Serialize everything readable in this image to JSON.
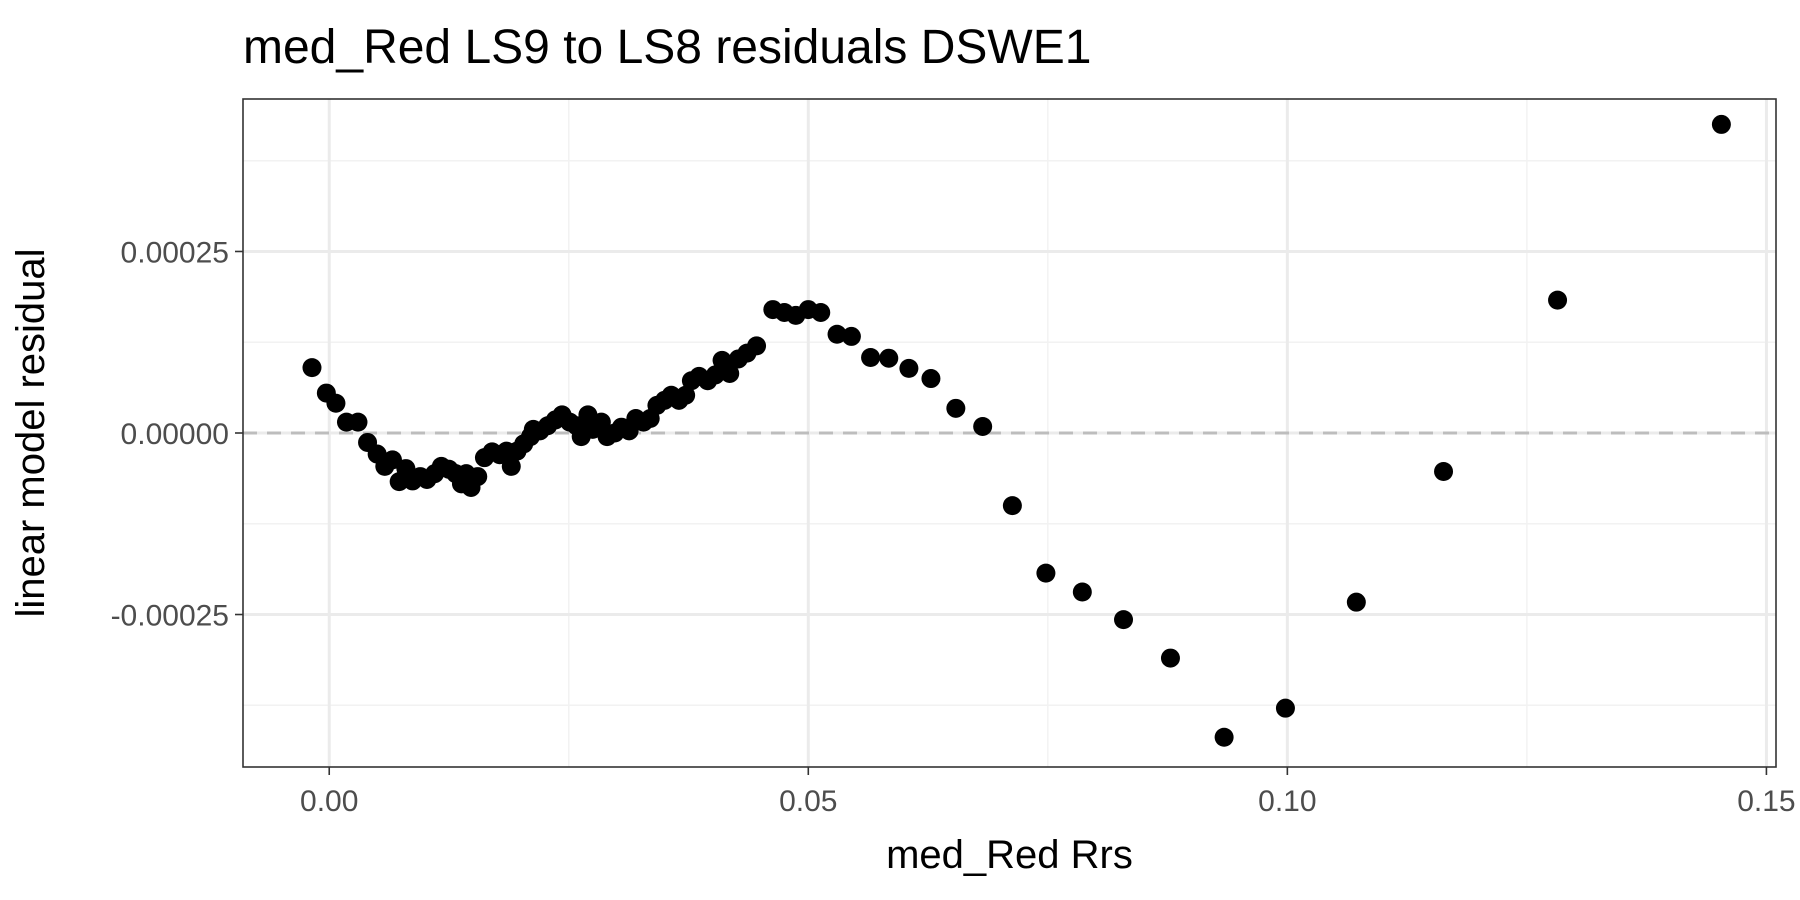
{
  "chart_data": {
    "type": "scatter",
    "title": "med_Red LS9 to LS8 residuals DSWE1",
    "xlabel": "med_Red  Rrs",
    "ylabel": "linear model residual",
    "xlim": [
      -0.009,
      0.151
    ],
    "ylim": [
      -0.00046,
      0.00046
    ],
    "x_major_ticks": [
      0.0,
      0.05,
      0.1,
      0.15
    ],
    "x_tick_labels": [
      "0.00",
      "0.05",
      "0.10",
      "0.15"
    ],
    "x_minor_ticks": [
      0.025,
      0.075,
      0.125
    ],
    "y_major_ticks": [
      -0.00025,
      0.0,
      0.00025
    ],
    "y_tick_labels": [
      "-0.00025",
      "0.00000",
      "0.00025"
    ],
    "y_minor_ticks": [
      -0.000375,
      -0.000125,
      0.000125,
      0.000375
    ],
    "reference_line": {
      "y": 0,
      "style": "dashed",
      "color": "#bdbdbd"
    },
    "grid": true,
    "point_color": "#000000",
    "points": [
      {
        "x": -0.0018,
        "y": 9e-05
      },
      {
        "x": -0.0003,
        "y": 5.5e-05
      },
      {
        "x": 0.0007,
        "y": 4.1e-05
      },
      {
        "x": 0.0018,
        "y": 1.5e-05
      },
      {
        "x": 0.003,
        "y": 1.5e-05
      },
      {
        "x": 0.004,
        "y": -1.3e-05
      },
      {
        "x": 0.005,
        "y": -2.9e-05
      },
      {
        "x": 0.0058,
        "y": -4.6e-05
      },
      {
        "x": 0.0066,
        "y": -3.7e-05
      },
      {
        "x": 0.0073,
        "y": -6.7e-05
      },
      {
        "x": 0.008,
        "y": -4.9e-05
      },
      {
        "x": 0.0087,
        "y": -6.6e-05
      },
      {
        "x": 0.0095,
        "y": -6e-05
      },
      {
        "x": 0.0102,
        "y": -6.4e-05
      },
      {
        "x": 0.011,
        "y": -5.6e-05
      },
      {
        "x": 0.0117,
        "y": -4.6e-05
      },
      {
        "x": 0.0125,
        "y": -5e-05
      },
      {
        "x": 0.0132,
        "y": -5.6e-05
      },
      {
        "x": 0.0138,
        "y": -7e-05
      },
      {
        "x": 0.0143,
        "y": -5.6e-05
      },
      {
        "x": 0.0148,
        "y": -7.5e-05
      },
      {
        "x": 0.0155,
        "y": -6e-05
      },
      {
        "x": 0.0162,
        "y": -3.4e-05
      },
      {
        "x": 0.017,
        "y": -2.6e-05
      },
      {
        "x": 0.0178,
        "y": -3e-05
      },
      {
        "x": 0.0185,
        "y": -2.5e-05
      },
      {
        "x": 0.019,
        "y": -4.6e-05
      },
      {
        "x": 0.0196,
        "y": -2.5e-05
      },
      {
        "x": 0.0203,
        "y": -1.5e-05
      },
      {
        "x": 0.021,
        "y": -5e-06
      },
      {
        "x": 0.0213,
        "y": 5e-06
      },
      {
        "x": 0.022,
        "y": 3e-06
      },
      {
        "x": 0.0228,
        "y": 1e-05
      },
      {
        "x": 0.0236,
        "y": 1.8e-05
      },
      {
        "x": 0.0243,
        "y": 2.5e-05
      },
      {
        "x": 0.0251,
        "y": 1.5e-05
      },
      {
        "x": 0.0258,
        "y": 1e-05
      },
      {
        "x": 0.0263,
        "y": -5e-06
      },
      {
        "x": 0.027,
        "y": 2.5e-05
      },
      {
        "x": 0.0275,
        "y": 5e-06
      },
      {
        "x": 0.0284,
        "y": 1.5e-05
      },
      {
        "x": 0.029,
        "y": -5e-06
      },
      {
        "x": 0.0298,
        "y": 0.0
      },
      {
        "x": 0.0305,
        "y": 8e-06
      },
      {
        "x": 0.0313,
        "y": 3e-06
      },
      {
        "x": 0.032,
        "y": 2e-05
      },
      {
        "x": 0.0328,
        "y": 1.5e-05
      },
      {
        "x": 0.0335,
        "y": 2e-05
      },
      {
        "x": 0.0342,
        "y": 3.8e-05
      },
      {
        "x": 0.035,
        "y": 4.5e-05
      },
      {
        "x": 0.0357,
        "y": 5.2e-05
      },
      {
        "x": 0.0365,
        "y": 4.5e-05
      },
      {
        "x": 0.0372,
        "y": 5.2e-05
      },
      {
        "x": 0.0378,
        "y": 7.2e-05
      },
      {
        "x": 0.0386,
        "y": 7.8e-05
      },
      {
        "x": 0.0395,
        "y": 7.2e-05
      },
      {
        "x": 0.0403,
        "y": 8e-05
      },
      {
        "x": 0.041,
        "y": 0.0001
      },
      {
        "x": 0.0418,
        "y": 8.2e-05
      },
      {
        "x": 0.0427,
        "y": 0.000102
      },
      {
        "x": 0.0436,
        "y": 0.00011
      },
      {
        "x": 0.0446,
        "y": 0.00012
      },
      {
        "x": 0.0463,
        "y": 0.00017
      },
      {
        "x": 0.0475,
        "y": 0.000166
      },
      {
        "x": 0.0487,
        "y": 0.000162
      },
      {
        "x": 0.05,
        "y": 0.00017
      },
      {
        "x": 0.0513,
        "y": 0.000166
      },
      {
        "x": 0.053,
        "y": 0.000136
      },
      {
        "x": 0.0545,
        "y": 0.000133
      },
      {
        "x": 0.0565,
        "y": 0.000104
      },
      {
        "x": 0.0584,
        "y": 0.000103
      },
      {
        "x": 0.0605,
        "y": 8.9e-05
      },
      {
        "x": 0.0628,
        "y": 7.5e-05
      },
      {
        "x": 0.0654,
        "y": 3.4e-05
      },
      {
        "x": 0.0682,
        "y": 9e-06
      },
      {
        "x": 0.0713,
        "y": -0.0001
      },
      {
        "x": 0.0748,
        "y": -0.000193
      },
      {
        "x": 0.0786,
        "y": -0.000219
      },
      {
        "x": 0.0829,
        "y": -0.000257
      },
      {
        "x": 0.0878,
        "y": -0.00031
      },
      {
        "x": 0.0934,
        "y": -0.000419
      },
      {
        "x": 0.0998,
        "y": -0.000379
      },
      {
        "x": 0.1072,
        "y": -0.000233
      },
      {
        "x": 0.1163,
        "y": -5.3e-05
      },
      {
        "x": 0.1282,
        "y": 0.000183
      },
      {
        "x": 0.1453,
        "y": 0.000425
      }
    ]
  }
}
